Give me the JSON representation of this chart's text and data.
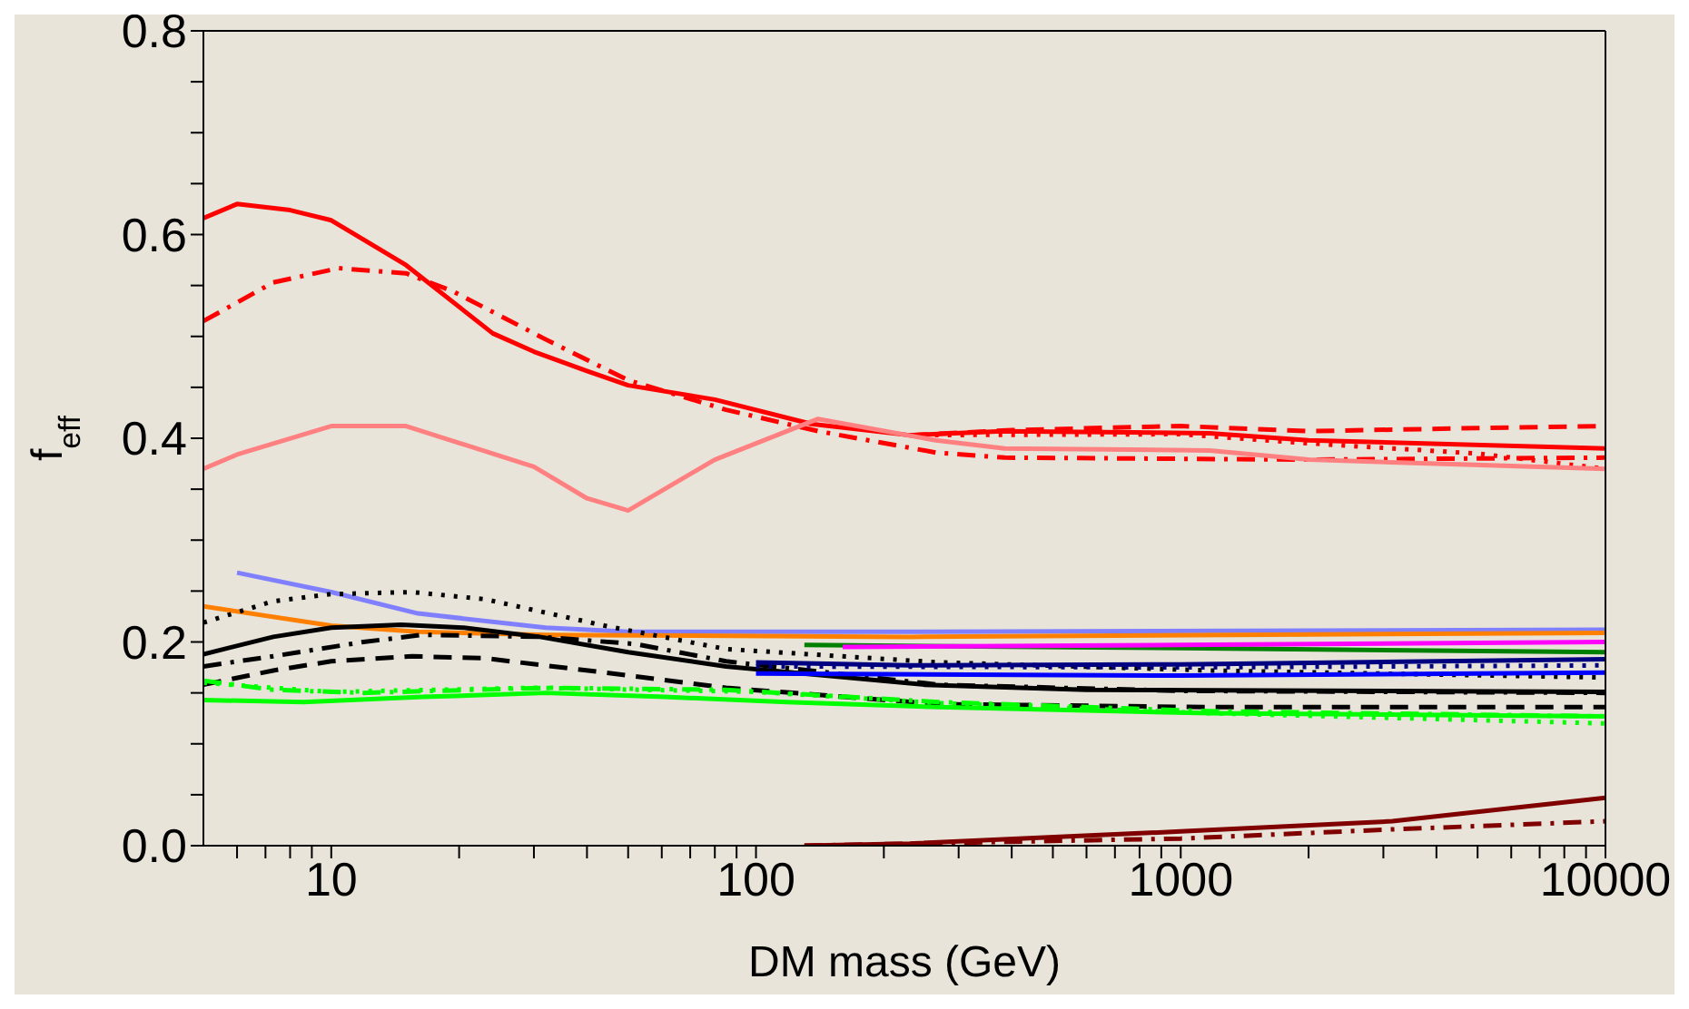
{
  "chart_data": {
    "type": "line",
    "xlabel": "DM mass (GeV)",
    "ylabel": "f$_{eff}$",
    "log": "x",
    "marker": "none",
    "xlim": [
      5,
      10000
    ],
    "ylim": [
      0,
      0.8
    ],
    "xticks": [
      {
        "value": 6,
        "label": null
      },
      {
        "value": 7,
        "label": null
      },
      {
        "value": 8,
        "label": null
      },
      {
        "value": 9,
        "label": null
      },
      10,
      {
        "value": 20,
        "label": null
      },
      {
        "value": 30,
        "label": null
      },
      {
        "value": 40,
        "label": null
      },
      {
        "value": 50,
        "label": null
      },
      {
        "value": 60,
        "label": null
      },
      {
        "value": 70,
        "label": null
      },
      {
        "value": 80,
        "label": null
      },
      {
        "value": 90,
        "label": null
      },
      100,
      {
        "value": 200,
        "label": null
      },
      {
        "value": 300,
        "label": null
      },
      {
        "value": 400,
        "label": null
      },
      {
        "value": 500,
        "label": null
      },
      {
        "value": 600,
        "label": null
      },
      {
        "value": 700,
        "label": null
      },
      {
        "value": 800,
        "label": null
      },
      {
        "value": 900,
        "label": null
      },
      1000,
      {
        "value": 2000,
        "label": null
      },
      {
        "value": 3000,
        "label": null
      },
      {
        "value": 4000,
        "label": null
      },
      {
        "value": 5000,
        "label": null
      },
      {
        "value": 6000,
        "label": null
      },
      {
        "value": 7000,
        "label": null
      },
      {
        "value": 8000,
        "label": null
      },
      {
        "value": 9000,
        "label": null
      },
      10000
    ],
    "yticks": [
      {
        "value": 0,
        "label": "0.0"
      },
      {
        "value": 0.05,
        "label": null
      },
      {
        "value": 0.1,
        "label": null
      },
      {
        "value": 0.15,
        "label": null
      },
      {
        "value": 0.2,
        "label": "0.2"
      },
      {
        "value": 0.25,
        "label": null
      },
      {
        "value": 0.3,
        "label": null
      },
      {
        "value": 0.35,
        "label": null
      },
      {
        "value": 0.4,
        "label": "0.4"
      },
      {
        "value": 0.45,
        "label": null
      },
      {
        "value": 0.5,
        "label": null
      },
      {
        "value": 0.55,
        "label": null
      },
      {
        "value": 0.6,
        "label": "0.6"
      },
      {
        "value": 0.65,
        "label": null
      },
      {
        "value": 0.7,
        "label": null
      },
      {
        "value": 0.75,
        "label": null
      },
      {
        "value": 0.8,
        "label": "0.8"
      }
    ],
    "series": [
      {
        "color": "#ff0000",
        "line_style": "solid",
        "x": [
          5,
          6,
          8,
          10,
          15,
          24,
          30,
          40,
          50,
          80,
          135,
          230,
          380,
          1170,
          2000,
          10000
        ],
        "values": [
          0.616,
          0.63,
          0.624,
          0.614,
          0.57,
          0.503,
          0.485,
          0.466,
          0.452,
          0.438,
          0.414,
          0.403,
          0.407,
          0.405,
          0.398,
          0.39
        ]
      },
      {
        "color": "#ff0000",
        "line_style": "dashed",
        "x": [
          230,
          400,
          1000,
          2000,
          5000,
          10000
        ],
        "values": [
          0.403,
          0.408,
          0.412,
          0.407,
          0.41,
          0.412
        ]
      },
      {
        "color": "#ff0000",
        "line_style": "dotted",
        "x": [
          230,
          1000,
          2000,
          5000,
          10000
        ],
        "values": [
          0.403,
          0.404,
          0.395,
          0.385,
          0.37
        ]
      },
      {
        "color": "#ff0000",
        "line_style": "dashdot",
        "x": [
          5,
          7.3,
          10.4,
          15,
          19.4,
          32,
          50,
          85,
          140,
          265,
          385,
          2000,
          10000
        ],
        "values": [
          0.515,
          0.553,
          0.567,
          0.562,
          0.544,
          0.497,
          0.457,
          0.428,
          0.407,
          0.386,
          0.381,
          0.379,
          0.381
        ]
      },
      {
        "color": "#ff8080",
        "line_style": "solid",
        "x": [
          5,
          6,
          10,
          15,
          30,
          40,
          50,
          80,
          140,
          265,
          385,
          1170,
          2000,
          10000
        ],
        "values": [
          0.37,
          0.384,
          0.412,
          0.412,
          0.372,
          0.341,
          0.329,
          0.379,
          0.419,
          0.398,
          0.39,
          0.388,
          0.379,
          0.37
        ]
      },
      {
        "color": "#8080ff",
        "line_style": "solid",
        "x": [
          6,
          10,
          16,
          32,
          50,
          230,
          10000
        ],
        "values": [
          0.268,
          0.249,
          0.228,
          0.214,
          0.21,
          0.21,
          0.212
        ]
      },
      {
        "color": "#ff8000",
        "line_style": "solid",
        "x": [
          5,
          10,
          16,
          32,
          230,
          10000
        ],
        "values": [
          0.235,
          0.216,
          0.21,
          0.207,
          0.205,
          0.209
        ]
      },
      {
        "color": "#000000",
        "line_style": "dotted",
        "x": [
          5,
          7.3,
          10,
          15.5,
          23,
          44,
          85,
          270,
          1170,
          10000
        ],
        "values": [
          0.219,
          0.24,
          0.247,
          0.249,
          0.242,
          0.216,
          0.193,
          0.18,
          0.172,
          0.165
        ]
      },
      {
        "color": "#000000",
        "line_style": "solid",
        "x": [
          5,
          7.3,
          10,
          14.6,
          20.5,
          31,
          50,
          85,
          250,
          600,
          10000
        ],
        "values": [
          0.188,
          0.205,
          0.214,
          0.217,
          0.214,
          0.205,
          0.19,
          0.176,
          0.158,
          0.153,
          0.151
        ]
      },
      {
        "color": "#000000",
        "line_style": "dashdot",
        "x": [
          5,
          7.3,
          11.9,
          16.4,
          31,
          52,
          85,
          270,
          1000,
          10000
        ],
        "values": [
          0.176,
          0.186,
          0.2,
          0.207,
          0.205,
          0.198,
          0.181,
          0.158,
          0.152,
          0.15
        ]
      },
      {
        "color": "#000000",
        "line_style": "dashed",
        "x": [
          5,
          7.3,
          10,
          15.5,
          23,
          44,
          85,
          270,
          1170,
          10000
        ],
        "values": [
          0.158,
          0.172,
          0.181,
          0.186,
          0.184,
          0.17,
          0.155,
          0.139,
          0.136,
          0.136
        ]
      },
      {
        "color": "#00ff00",
        "line_style": "solid",
        "x": [
          5,
          8.6,
          16.4,
          32,
          61,
          118,
          270,
          1170,
          10000
        ],
        "values": [
          0.143,
          0.141,
          0.146,
          0.15,
          0.146,
          0.141,
          0.136,
          0.13,
          0.127
        ]
      },
      {
        "color": "#00ff00",
        "line_style": "dashdot",
        "x": [
          5,
          7.3,
          11.9,
          32,
          85,
          270,
          1170,
          10000
        ],
        "values": [
          0.162,
          0.153,
          0.15,
          0.155,
          0.153,
          0.141,
          0.132,
          0.127
        ]
      },
      {
        "color": "#00ff00",
        "line_style": "dotted",
        "x": [
          5,
          10,
          30,
          100,
          270,
          1170,
          10000
        ],
        "values": [
          0.16,
          0.151,
          0.155,
          0.151,
          0.14,
          0.13,
          0.12
        ]
      },
      {
        "color": "#008000",
        "line_style": "solid",
        "x": [
          130,
          1000,
          10000
        ],
        "values": [
          0.197,
          0.194,
          0.19
        ]
      },
      {
        "color": "#ff00ff",
        "line_style": "solid",
        "x": [
          160,
          1000,
          10000
        ],
        "values": [
          0.195,
          0.197,
          0.2
        ]
      },
      {
        "color": "#000080",
        "line_style": "solid",
        "x": [
          100,
          230,
          1000,
          10000
        ],
        "values": [
          0.18,
          0.177,
          0.178,
          0.183
        ]
      },
      {
        "color": "#000080",
        "line_style": "dotted",
        "x": [
          100,
          1000,
          10000
        ],
        "values": [
          0.176,
          0.175,
          0.177
        ]
      },
      {
        "color": "#0000ff",
        "line_style": "solid",
        "x": [
          100,
          1000,
          10000
        ],
        "values": [
          0.169,
          0.167,
          0.17
        ]
      },
      {
        "color": "#800000",
        "line_style": "solid",
        "x": [
          130,
          230,
          1000,
          3150,
          10000
        ],
        "values": [
          0,
          0.002,
          0.014,
          0.024,
          0.047
        ]
      },
      {
        "color": "#800000",
        "line_style": "dashdot",
        "x": [
          130,
          1000,
          3150,
          10000
        ],
        "values": [
          0,
          0.007,
          0.016,
          0.024
        ]
      }
    ]
  }
}
